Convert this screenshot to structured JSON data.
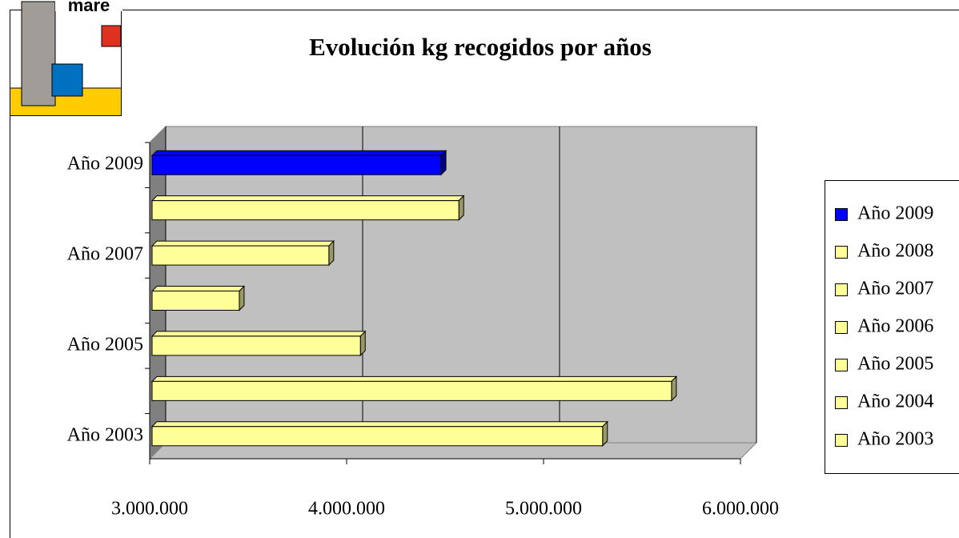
{
  "logo": {
    "text": "mare"
  },
  "chart_data": {
    "type": "bar3d",
    "orientation": "horizontal",
    "title": "Evolución kg recogidos por años",
    "categories": [
      "Año 2009",
      null,
      "Año 2007",
      null,
      "Año 2005",
      null,
      "Año 2003"
    ],
    "values": [
      4480000,
      4570000,
      3910000,
      3455000,
      4070000,
      5650000,
      5300000
    ],
    "legend": [
      {
        "name": "Año 2009",
        "color": "#0000ff"
      },
      {
        "name": "Año 2008",
        "color": "#ffff99"
      },
      {
        "name": "Año 2007",
        "color": "#ffff99"
      },
      {
        "name": "Año 2006",
        "color": "#ffff99"
      },
      {
        "name": "Año 2005",
        "color": "#ffff99"
      },
      {
        "name": "Año 2004",
        "color": "#ffff99"
      },
      {
        "name": "Año 2003",
        "color": "#ffff99"
      }
    ],
    "xlim": [
      3000000,
      6000000
    ],
    "xticks": [
      {
        "value": 3000000,
        "label": "3.000.000"
      },
      {
        "value": 4000000,
        "label": "4.000.000"
      },
      {
        "value": 5000000,
        "label": "5.000.000"
      },
      {
        "value": 6000000,
        "label": "6.000.000"
      }
    ],
    "grid": true,
    "wall_color": "#c0c0c0",
    "legend_position": "right"
  }
}
